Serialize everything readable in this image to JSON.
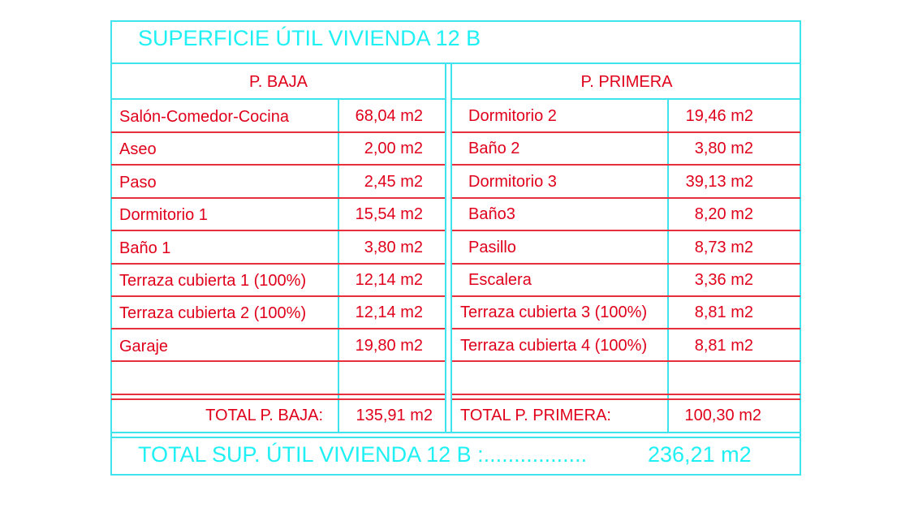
{
  "title": "SUPERFICIE ÚTIL VIVIENDA 12 B",
  "colors": {
    "text_red": "#e0001b",
    "text_cyan": "#1ef0f4",
    "line_cyan": "#3fe3ee",
    "line_red": "#e8303d"
  },
  "baja": {
    "header": "P. BAJA",
    "rows": [
      {
        "room": "Salón-Comedor-Cocina",
        "area": "68,04 m2"
      },
      {
        "room": "Aseo",
        "area": "2,00 m2"
      },
      {
        "room": "Paso",
        "area": "2,45 m2"
      },
      {
        "room": "Dormitorio 1",
        "area": "15,54 m2"
      },
      {
        "room": "Baño 1",
        "area": "3,80 m2"
      },
      {
        "room": "Terraza cubierta 1 (100%)",
        "area": "12,14 m2"
      },
      {
        "room": "Terraza cubierta 2 (100%)",
        "area": "12,14 m2"
      },
      {
        "room": "Garaje",
        "area": "19,80 m2"
      }
    ],
    "total_label": "TOTAL P. BAJA:",
    "total_value": "135,91 m2"
  },
  "primera": {
    "header": "P. PRIMERA",
    "rows": [
      {
        "room": "Dormitorio 2",
        "area": "19,46 m2"
      },
      {
        "room": "Baño 2",
        "area": "3,80 m2"
      },
      {
        "room": "Dormitorio 3",
        "area": "39,13 m2"
      },
      {
        "room": "Baño3",
        "area": "8,20 m2"
      },
      {
        "room": "Pasillo",
        "area": "8,73 m2"
      },
      {
        "room": "Escalera",
        "area": "3,36 m2"
      },
      {
        "room": "Terraza cubierta 3 (100%)",
        "area": "8,81 m2"
      },
      {
        "room": "Terraza cubierta 4 (100%)",
        "area": "8,81 m2"
      }
    ],
    "total_label": "TOTAL P. PRIMERA:",
    "total_value": "100,30 m2"
  },
  "grand_total": {
    "label": "TOTAL SUP. ÚTIL VIVIENDA 12 B :.................",
    "value": "236,21 m2"
  }
}
